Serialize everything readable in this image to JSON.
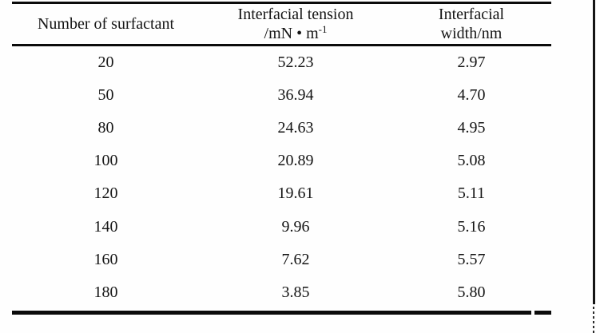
{
  "page": {
    "background": "#fefefe",
    "rule_color": "#0b0b0b",
    "text_color": "#141414"
  },
  "table": {
    "header": {
      "col1": "Number of surfactant",
      "col2_line1": "Interfacial tension",
      "col2_unit_prefix": "/mN • m",
      "col2_unit_sup": "-1",
      "col3_line1": "Interfacial",
      "col3_line2": "width/nm"
    },
    "rows": [
      {
        "surfactant": "20",
        "tension": "52.23",
        "width": "2.97"
      },
      {
        "surfactant": "50",
        "tension": "36.94",
        "width": "4.70"
      },
      {
        "surfactant": "80",
        "tension": "24.63",
        "width": "4.95"
      },
      {
        "surfactant": "100",
        "tension": "20.89",
        "width": "5.08"
      },
      {
        "surfactant": "120",
        "tension": "19.61",
        "width": "5.11"
      },
      {
        "surfactant": "140",
        "tension": "9.96",
        "width": "5.16"
      },
      {
        "surfactant": "160",
        "tension": "7.62",
        "width": "5.57"
      },
      {
        "surfactant": "180",
        "tension": "3.85",
        "width": "5.80"
      }
    ]
  },
  "chart_data": {
    "type": "table",
    "columns": [
      "Number of surfactant",
      "Interfacial tension /mN•m⁻¹",
      "Interfacial width/nm"
    ],
    "rows": [
      [
        20,
        52.23,
        2.97
      ],
      [
        50,
        36.94,
        4.7
      ],
      [
        80,
        24.63,
        4.95
      ],
      [
        100,
        20.89,
        5.08
      ],
      [
        120,
        19.61,
        5.11
      ],
      [
        140,
        9.96,
        5.16
      ],
      [
        160,
        7.62,
        5.57
      ],
      [
        180,
        3.85,
        5.8
      ]
    ]
  }
}
